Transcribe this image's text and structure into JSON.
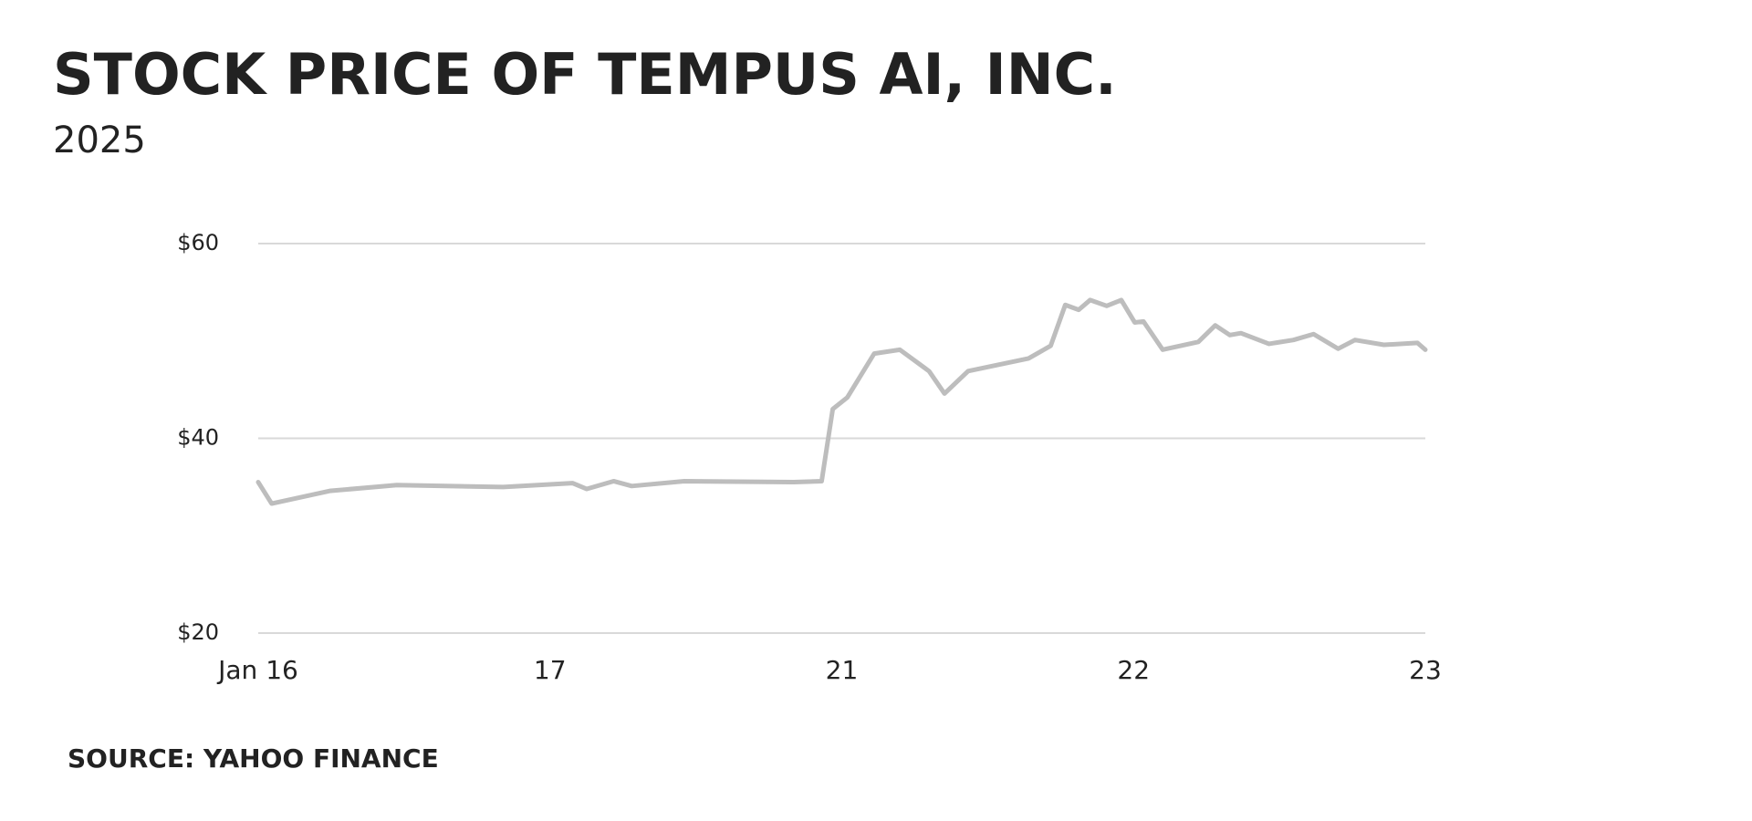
{
  "chart_data": {
    "type": "line",
    "title": "STOCK PRICE OF TEMPUS AI, INC.",
    "subtitle": "2025",
    "source": "SOURCE: YAHOO FINANCE",
    "x": [
      0,
      0.046,
      0.245,
      0.475,
      0.839,
      1.077,
      1.126,
      1.218,
      1.28,
      1.46,
      1.835,
      1.931,
      1.969,
      2.019,
      2.111,
      2.199,
      2.299,
      2.352,
      2.433,
      2.64,
      2.716,
      2.766,
      2.812,
      2.851,
      2.908,
      2.958,
      3.004,
      3.034,
      3.1,
      3.222,
      3.28,
      3.33,
      3.368,
      3.464,
      3.548,
      3.617,
      3.701,
      3.759,
      3.858,
      3.973,
      4
    ],
    "series": [
      {
        "name": "Tempus AI",
        "color": "#bdbdbd",
        "values": [
          35.5,
          33.3,
          34.6,
          35.2,
          35.0,
          35.4,
          34.8,
          35.6,
          35.1,
          35.6,
          35.5,
          35.6,
          43.0,
          44.2,
          48.7,
          49.1,
          46.9,
          44.6,
          46.9,
          48.2,
          49.5,
          53.7,
          53.2,
          54.2,
          53.6,
          54.2,
          51.9,
          52.0,
          49.1,
          49.9,
          51.6,
          50.6,
          50.8,
          49.7,
          50.1,
          50.7,
          49.2,
          50.1,
          49.6,
          49.8,
          49.1
        ]
      }
    ],
    "xlim": [
      0,
      4
    ],
    "xticks": [
      {
        "value": 0,
        "label": "Jan 16"
      },
      {
        "value": 1,
        "label": "17"
      },
      {
        "value": 2,
        "label": "21"
      },
      {
        "value": 3,
        "label": "22"
      },
      {
        "value": 4,
        "label": "23"
      }
    ],
    "ylim": [
      20,
      60
    ],
    "yticks": [
      {
        "value": 20,
        "label": "$20"
      },
      {
        "value": 40,
        "label": "$40"
      },
      {
        "value": 60,
        "label": "$60"
      }
    ],
    "grid": true
  }
}
